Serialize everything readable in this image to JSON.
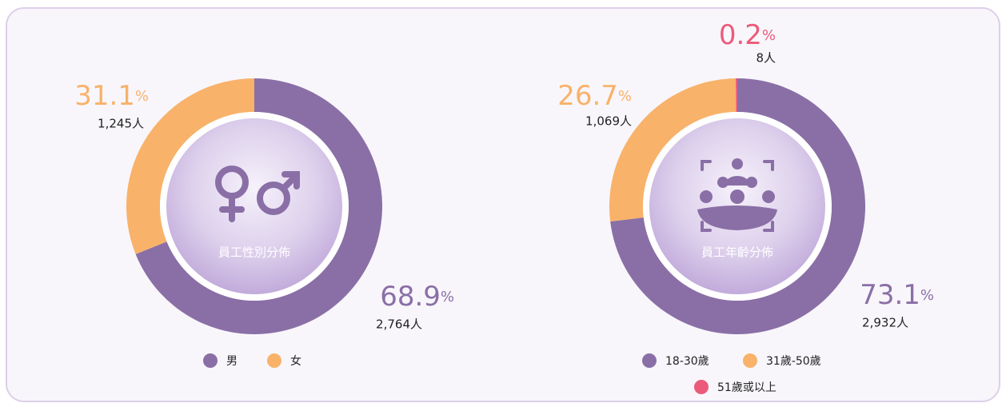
{
  "chart_data": [
    {
      "type": "pie",
      "title": "員工性別分佈",
      "categories": [
        "男",
        "女"
      ],
      "values": [
        68.9,
        31.1
      ],
      "value_labels": [
        "68.9%",
        "31.1%"
      ],
      "counts": [
        "2,764人",
        "1,245人"
      ],
      "colors": [
        "#8a6fa6",
        "#f8b26a"
      ]
    },
    {
      "type": "pie",
      "title": "員工年齡分佈",
      "categories": [
        "18-30歲",
        "31歲-50歲",
        "51歲或以上"
      ],
      "values": [
        73.1,
        26.7,
        0.2
      ],
      "value_labels": [
        "73.1%",
        "26.7%",
        "0.2%"
      ],
      "counts": [
        "2,932人",
        "1,069人",
        "8人"
      ],
      "colors": [
        "#8a6fa6",
        "#f8b26a",
        "#ec5a7a"
      ]
    }
  ]
}
